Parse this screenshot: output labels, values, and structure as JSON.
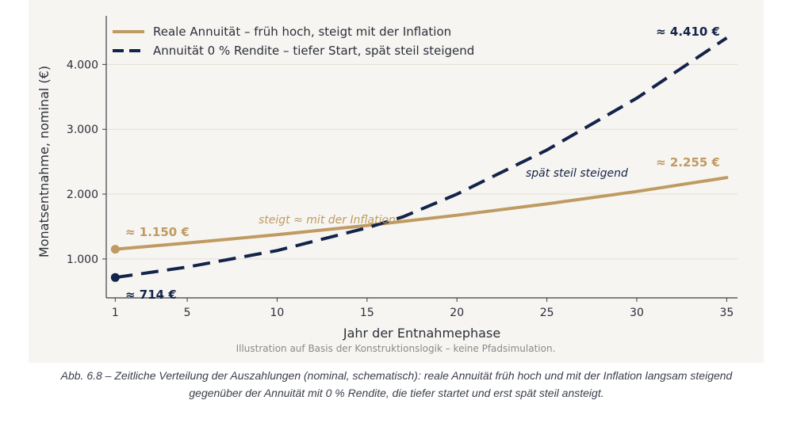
{
  "chart_data": {
    "type": "line",
    "xlabel": "Jahr der Entnahmephase",
    "ylabel": "Monatsentnahme, nominal (€)",
    "xlim": [
      0.5,
      35.6
    ],
    "ylim": [
      400,
      4750
    ],
    "xticks": [
      1,
      5,
      10,
      15,
      20,
      25,
      30,
      35
    ],
    "xtick_labels": [
      "1",
      "5",
      "10",
      "15",
      "20",
      "25",
      "30",
      "35"
    ],
    "yticks": [
      1000,
      2000,
      3000,
      4000
    ],
    "ytick_labels": [
      "1.000",
      "2.000",
      "3.000",
      "4.000"
    ],
    "grid": "horizontal",
    "legend_position": "top-left",
    "colors": {
      "real": "#bf9a62",
      "zero": "#13244a",
      "background": "#f7f5f1",
      "grid": "#e3ded5",
      "axis": "#3a3f4a"
    },
    "series": [
      {
        "name": "Reale Annuität – früh hoch, steigt mit der Inflation",
        "style": "solid",
        "x": [
          1,
          5,
          10,
          15,
          20,
          25,
          30,
          35
        ],
        "y": [
          1150,
          1245,
          1374,
          1517,
          1675,
          1849,
          2041,
          2255
        ]
      },
      {
        "name": "Annuität 0 % Rendite – tiefer Start, spät steil steigend",
        "style": "dashed",
        "x": [
          1,
          5,
          10,
          15,
          17,
          20,
          25,
          30,
          35
        ],
        "y": [
          714,
          875,
          1130,
          1480,
          1650,
          2000,
          2680,
          3480,
          4410
        ]
      }
    ],
    "annotations": [
      {
        "text": "≈ 1.150 €",
        "series": 0,
        "style": "bold"
      },
      {
        "text": "≈ 714 €",
        "series": 1,
        "style": "bold"
      },
      {
        "text": "≈ 2.255 €",
        "series": 0,
        "style": "bold"
      },
      {
        "text": "≈ 4.410 €",
        "series": 1,
        "style": "bold"
      },
      {
        "text": "steigt ≈ mit der Inflation",
        "series": 0,
        "style": "italic"
      },
      {
        "text": "spät steil steigend",
        "series": 1,
        "style": "italic"
      }
    ],
    "footnote": "Illustration auf Basis der Konstruktionslogik – keine Pfadsimulation."
  },
  "caption": {
    "line1": "Abb. 6.8 – Zeitliche Verteilung der Auszahlungen (nominal, schematisch): reale Annuität früh hoch und mit der Inflation langsam steigend",
    "line2": "gegenüber der Annuität mit 0 % Rendite, die tiefer startet und erst spät steil ansteigt."
  }
}
